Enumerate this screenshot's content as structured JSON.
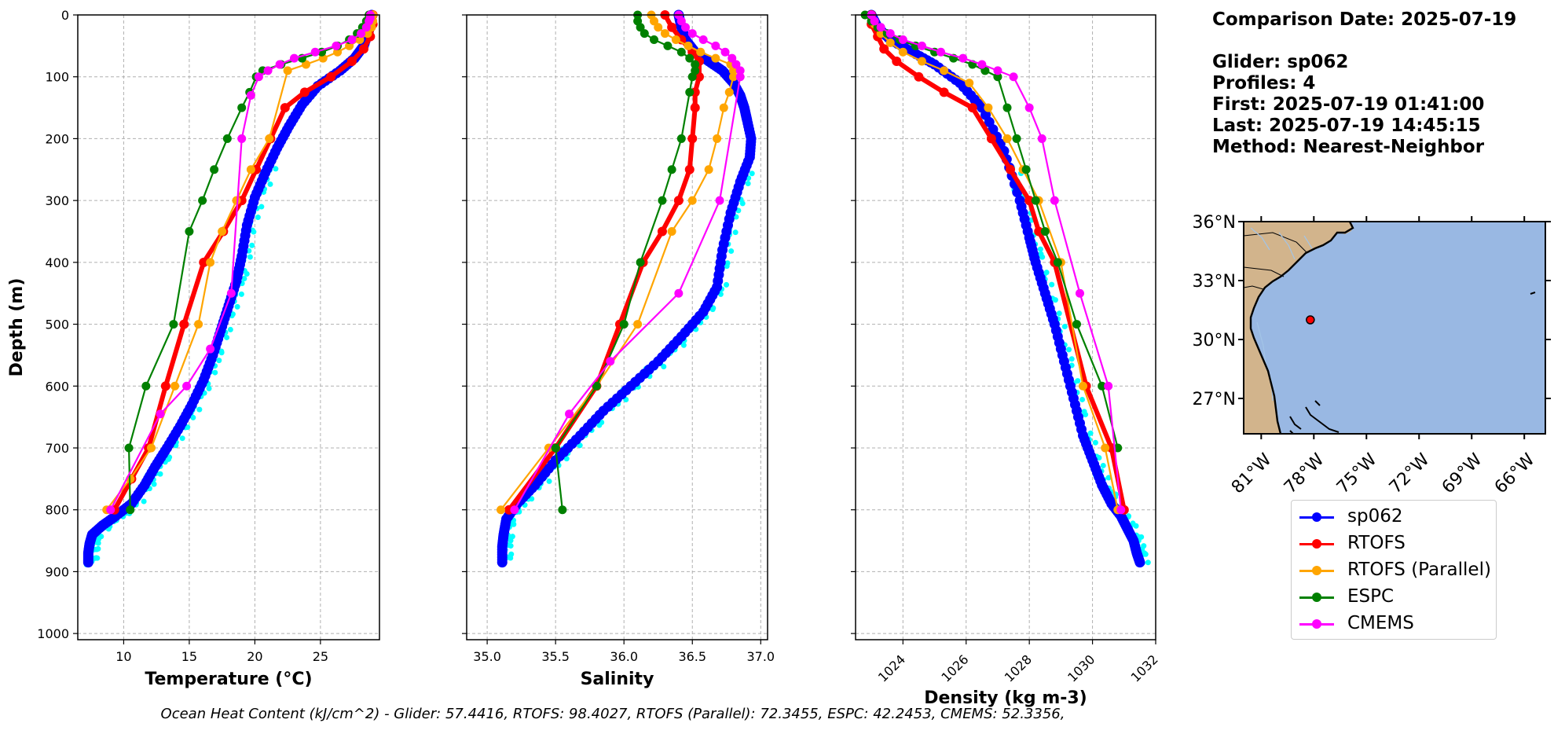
{
  "info": {
    "comparison_date": "Comparison Date: 2025-07-19",
    "glider": "Glider: sp062",
    "profiles": "Profiles: 4",
    "first": "First: 2025-07-19 01:41:00",
    "last": "Last: 2025-07-19 14:45:15",
    "method": "Method: Nearest-Neighbor"
  },
  "footer": "Ocean Heat Content (kJ/cm^2) - Glider: 57.4416,  RTOFS: 98.4027,  RTOFS (Parallel): 72.3455,  ESPC: 42.2453,  CMEMS: 52.3356,",
  "colors": {
    "sp062": "#0000ff",
    "rtofs": "#ff0000",
    "rtofs_parallel": "#ffa500",
    "espc": "#008000",
    "cmems": "#ff00ff",
    "glider_raw": "#00ffff",
    "ocean": "#99b8e3",
    "land": "#d2b48c",
    "rivers": "#a3c4e6"
  },
  "legend": [
    {
      "key": "sp062",
      "label": "sp062"
    },
    {
      "key": "rtofs",
      "label": "RTOFS"
    },
    {
      "key": "rtofs_parallel",
      "label": "RTOFS (Parallel)"
    },
    {
      "key": "espc",
      "label": "ESPC"
    },
    {
      "key": "cmems",
      "label": "CMEMS"
    }
  ],
  "chart_data": [
    {
      "type": "line",
      "xlabel": "Temperature (°C)",
      "ylabel": "Depth (m)",
      "xlim": [
        6.5,
        29.5
      ],
      "ylim": [
        1010,
        0
      ],
      "xticks": [
        10,
        15,
        20,
        25
      ],
      "yticks": [
        0,
        100,
        200,
        300,
        400,
        500,
        600,
        700,
        800,
        900,
        1000
      ],
      "grid": true,
      "series": [
        {
          "name": "sp062",
          "key": "sp062",
          "style": "dense",
          "x": [
            28.9,
            28.7,
            28.3,
            27.6,
            26.5,
            24.8,
            23.6,
            22.6,
            21.7,
            20.8,
            20.0,
            19.4,
            19.0,
            18.6,
            18.0,
            17.4,
            16.8,
            16.1,
            15.2,
            14.3,
            13.3,
            12.4,
            11.6,
            10.6,
            9.4,
            8.4,
            7.6,
            7.4,
            7.3,
            7.3
          ],
          "y": [
            0,
            25,
            50,
            70,
            90,
            115,
            145,
            180,
            215,
            255,
            295,
            340,
            390,
            430,
            470,
            510,
            550,
            590,
            630,
            665,
            700,
            730,
            760,
            790,
            810,
            825,
            840,
            855,
            870,
            885
          ]
        },
        {
          "name": "RTOFS",
          "key": "rtofs",
          "style": "thick",
          "x": [
            29.0,
            29.0,
            28.8,
            28.3,
            27.4,
            25.8,
            23.8,
            22.3,
            21.2,
            20.1,
            19.0,
            17.6,
            16.1,
            14.6,
            13.2,
            11.9,
            10.6,
            9.3
          ],
          "y": [
            0,
            15,
            35,
            55,
            75,
            100,
            125,
            150,
            200,
            250,
            300,
            350,
            400,
            500,
            600,
            700,
            750,
            800
          ]
        },
        {
          "name": "RTOFS (Parallel)",
          "key": "rtofs_parallel",
          "style": "normal",
          "x": [
            29.0,
            29.0,
            28.9,
            28.6,
            28.0,
            27.2,
            26.3,
            25.2,
            23.9,
            22.5,
            21.1,
            19.7,
            18.6,
            17.5,
            16.6,
            15.7,
            13.9,
            12.1,
            10.5,
            8.7
          ],
          "y": [
            0,
            10,
            20,
            30,
            40,
            50,
            60,
            70,
            80,
            90,
            200,
            250,
            300,
            350,
            400,
            500,
            600,
            700,
            750,
            800
          ]
        },
        {
          "name": "ESPC",
          "key": "espc",
          "style": "normal",
          "x": [
            28.7,
            28.5,
            28.2,
            27.8,
            27.2,
            26.3,
            25.1,
            23.6,
            22.0,
            20.6,
            20.1,
            19.6,
            19.0,
            17.9,
            16.9,
            16.0,
            15.0,
            13.8,
            11.7,
            10.4,
            10.5
          ],
          "y": [
            0,
            10,
            20,
            30,
            40,
            50,
            60,
            70,
            80,
            90,
            100,
            125,
            150,
            200,
            250,
            300,
            350,
            500,
            600,
            700,
            800
          ]
        },
        {
          "name": "CMEMS",
          "key": "cmems",
          "style": "normal",
          "x": [
            28.8,
            28.8,
            28.7,
            28.5,
            28.1,
            27.4,
            26.2,
            24.6,
            23.0,
            21.9,
            21.0,
            20.3,
            19.7,
            19.0,
            18.2,
            16.6,
            14.8,
            12.8,
            9.0
          ],
          "y": [
            0,
            5,
            10,
            20,
            30,
            40,
            50,
            60,
            70,
            80,
            90,
            100,
            130,
            200,
            450,
            540,
            600,
            645,
            800
          ]
        }
      ]
    },
    {
      "type": "line",
      "xlabel": "Salinity",
      "ylabel": "",
      "xlim": [
        34.85,
        37.05
      ],
      "ylim": [
        1010,
        0
      ],
      "xticks": [
        35.0,
        35.5,
        36.0,
        36.5,
        37.0
      ],
      "grid": true,
      "series": [
        {
          "name": "sp062",
          "key": "sp062",
          "style": "dense",
          "x": [
            36.4,
            36.42,
            36.45,
            36.52,
            36.62,
            36.72,
            36.8,
            36.85,
            36.88,
            36.9,
            36.93,
            36.92,
            36.85,
            36.78,
            36.72,
            36.68,
            36.58,
            36.42,
            36.25,
            36.05,
            35.85,
            35.68,
            35.5,
            35.35,
            35.22,
            35.14,
            35.12,
            35.11,
            35.11
          ],
          "y": [
            0,
            20,
            40,
            60,
            75,
            90,
            110,
            130,
            150,
            170,
            200,
            230,
            270,
            320,
            380,
            440,
            480,
            520,
            560,
            600,
            640,
            680,
            720,
            760,
            790,
            815,
            840,
            860,
            885
          ]
        },
        {
          "name": "RTOFS",
          "key": "rtofs",
          "style": "thick",
          "x": [
            36.3,
            36.35,
            36.42,
            36.5,
            36.55,
            36.55,
            36.52,
            36.52,
            36.5,
            36.48,
            36.4,
            36.28,
            36.14,
            35.97,
            35.8,
            35.5,
            35.16
          ],
          "y": [
            0,
            20,
            40,
            60,
            75,
            100,
            125,
            150,
            200,
            250,
            300,
            350,
            400,
            500,
            600,
            700,
            800
          ]
        },
        {
          "name": "RTOFS (Parallel)",
          "key": "rtofs_parallel",
          "style": "normal",
          "x": [
            36.2,
            36.22,
            36.25,
            36.3,
            36.38,
            36.47,
            36.56,
            36.67,
            36.78,
            36.8,
            36.8,
            36.77,
            36.73,
            36.68,
            36.62,
            36.5,
            36.35,
            36.1,
            35.8,
            35.45,
            35.1
          ],
          "y": [
            0,
            10,
            20,
            30,
            40,
            50,
            60,
            70,
            80,
            90,
            100,
            125,
            150,
            200,
            250,
            300,
            350,
            500,
            600,
            700,
            800
          ]
        },
        {
          "name": "ESPC",
          "key": "espc",
          "style": "normal",
          "x": [
            36.1,
            36.1,
            36.12,
            36.15,
            36.22,
            36.32,
            36.42,
            36.48,
            36.52,
            36.52,
            36.5,
            36.48,
            36.42,
            36.35,
            36.28,
            36.12,
            36.0,
            35.8,
            35.5,
            35.55
          ],
          "y": [
            0,
            10,
            20,
            30,
            40,
            50,
            60,
            70,
            80,
            90,
            100,
            125,
            200,
            250,
            300,
            400,
            500,
            600,
            700,
            800
          ]
        },
        {
          "name": "CMEMS",
          "key": "cmems",
          "style": "normal",
          "x": [
            36.4,
            36.42,
            36.45,
            36.5,
            36.58,
            36.67,
            36.74,
            36.79,
            36.82,
            36.85,
            36.85,
            36.7,
            36.4,
            35.9,
            35.6,
            35.2
          ],
          "y": [
            0,
            10,
            20,
            30,
            40,
            50,
            60,
            70,
            80,
            90,
            100,
            300,
            450,
            560,
            645,
            800
          ]
        }
      ]
    },
    {
      "type": "line",
      "xlabel": "Density (kg m-3)",
      "ylabel": "",
      "xlim": [
        1022.5,
        1032.0
      ],
      "ylim": [
        1010,
        0
      ],
      "xticks": [
        1024,
        1026,
        1028,
        1030,
        1032
      ],
      "grid": true,
      "series": [
        {
          "name": "sp062",
          "key": "sp062",
          "style": "dense",
          "x": [
            1023.0,
            1023.2,
            1023.6,
            1024.3,
            1025.0,
            1025.8,
            1026.5,
            1027.2,
            1027.7,
            1028.0,
            1028.2,
            1028.5,
            1028.8,
            1029.1,
            1029.4,
            1029.7,
            1030.0,
            1030.3,
            1030.6,
            1030.9,
            1031.1,
            1031.3,
            1031.4,
            1031.5
          ],
          "y": [
            0,
            20,
            40,
            60,
            80,
            110,
            150,
            220,
            300,
            360,
            400,
            450,
            500,
            560,
            620,
            680,
            720,
            760,
            790,
            810,
            830,
            850,
            870,
            885
          ]
        },
        {
          "name": "RTOFS",
          "key": "rtofs",
          "style": "thick",
          "x": [
            1023.0,
            1023.0,
            1023.2,
            1023.4,
            1023.8,
            1024.5,
            1025.3,
            1026.2,
            1026.8,
            1027.4,
            1028.0,
            1028.3,
            1028.8,
            1029.8,
            1030.6,
            1031.0
          ],
          "y": [
            0,
            15,
            35,
            55,
            75,
            100,
            125,
            150,
            200,
            250,
            300,
            350,
            400,
            600,
            700,
            800
          ]
        },
        {
          "name": "RTOFS (Parallel)",
          "key": "rtofs_parallel",
          "style": "normal",
          "x": [
            1023.0,
            1023.1,
            1023.3,
            1023.6,
            1024.0,
            1024.6,
            1025.3,
            1026.1,
            1026.7,
            1027.3,
            1027.8,
            1028.3,
            1029.0,
            1029.7,
            1030.4,
            1030.8
          ],
          "y": [
            0,
            15,
            30,
            45,
            60,
            75,
            90,
            110,
            150,
            200,
            250,
            300,
            400,
            600,
            700,
            800
          ]
        },
        {
          "name": "ESPC",
          "key": "espc",
          "style": "normal",
          "x": [
            1022.8,
            1023.0,
            1023.2,
            1023.5,
            1023.9,
            1024.4,
            1025.0,
            1025.6,
            1026.2,
            1026.6,
            1027.0,
            1027.3,
            1027.6,
            1027.9,
            1028.2,
            1028.5,
            1028.9,
            1029.5,
            1030.3,
            1030.8
          ],
          "y": [
            0,
            10,
            20,
            30,
            40,
            50,
            60,
            70,
            80,
            90,
            100,
            150,
            200,
            250,
            300,
            350,
            400,
            500,
            600,
            700
          ]
        },
        {
          "name": "CMEMS",
          "key": "cmems",
          "style": "normal",
          "x": [
            1023.0,
            1023.1,
            1023.3,
            1023.6,
            1024.0,
            1024.6,
            1025.2,
            1025.9,
            1026.5,
            1027.0,
            1027.5,
            1028.0,
            1028.4,
            1028.8,
            1029.6,
            1030.5,
            1030.9
          ],
          "y": [
            0,
            10,
            20,
            30,
            40,
            50,
            60,
            70,
            80,
            90,
            100,
            150,
            200,
            300,
            450,
            600,
            800
          ]
        }
      ]
    }
  ],
  "map": {
    "lat_ticks": [
      "36°N",
      "33°N",
      "30°N",
      "27°N"
    ],
    "lat_values": [
      36,
      33,
      30,
      27
    ],
    "lon_ticks": [
      "81°W",
      "78°W",
      "75°W",
      "72°W",
      "69°W",
      "66°W"
    ],
    "lon_values": [
      -81,
      -78,
      -75,
      -72,
      -69,
      -66
    ],
    "lat_range": [
      25.2,
      36.0
    ],
    "lon_range": [
      -82.0,
      -64.8
    ],
    "glider_position": {
      "lat": 31.0,
      "lon": -78.2
    }
  }
}
